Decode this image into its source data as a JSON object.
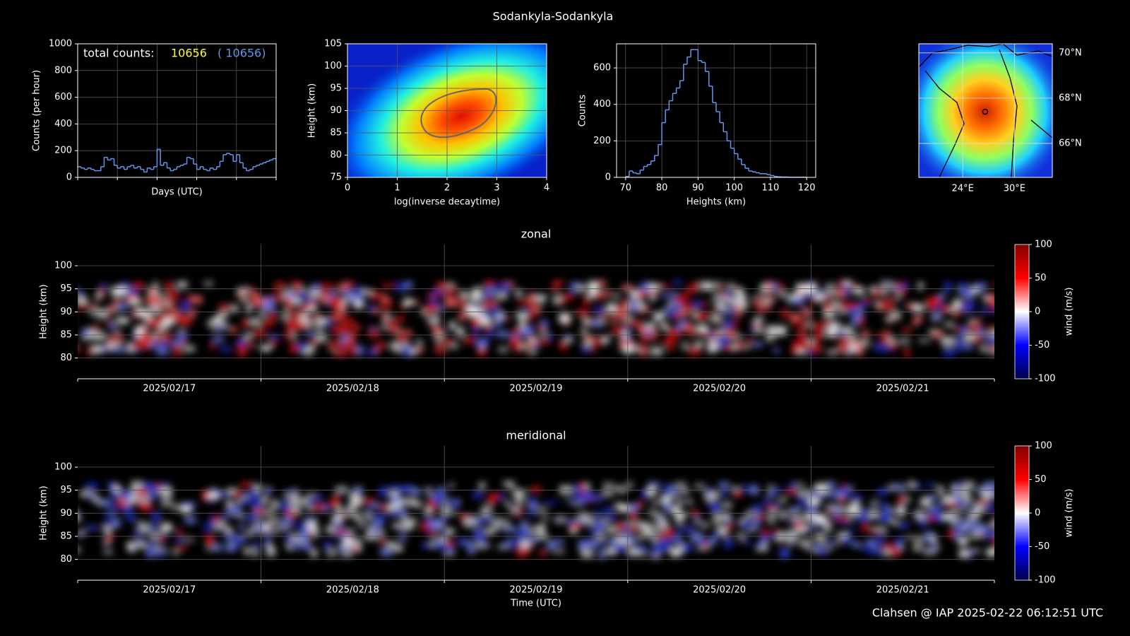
{
  "title": "Sodankyla-Sodankyla",
  "footer": "Clahsen @ IAP 2025-02-22 06:12:51 UTC",
  "chart_data": [
    {
      "type": "step",
      "xlabel": "Days (UTC)",
      "ylabel": "Counts (per hour)",
      "color": "#6495ed",
      "xlim": [
        "2025/02/17",
        "2025/02/22"
      ],
      "ylim": [
        0,
        1000
      ],
      "yticks": [
        0,
        200,
        400,
        600,
        800,
        1000
      ],
      "grid": true,
      "annotations": [
        {
          "text": "total counts:",
          "color": "#ffffff"
        },
        {
          "text": "10656",
          "color": "#ffff33"
        },
        {
          "text": "( 10656)",
          "color": "#6495ed"
        }
      ],
      "values": [
        80,
        70,
        60,
        70,
        60,
        50,
        50,
        80,
        150,
        130,
        140,
        90,
        70,
        80,
        60,
        80,
        90,
        70,
        80,
        60,
        40,
        70,
        60,
        80,
        210,
        90,
        110,
        70,
        50,
        60,
        80,
        90,
        100,
        150,
        140,
        100,
        60,
        80,
        60,
        50,
        70,
        60,
        80,
        120,
        170,
        180,
        170,
        120,
        170,
        110,
        70,
        50,
        60,
        80,
        90,
        100,
        110,
        120,
        130,
        140
      ]
    },
    {
      "type": "density",
      "xlabel": "log(inverse decaytime)",
      "ylabel": "Height (km)",
      "xlim": [
        0,
        4
      ],
      "xticks": [
        0,
        1,
        2,
        3,
        4
      ],
      "ylim": [
        75,
        105
      ],
      "yticks": [
        75,
        80,
        85,
        90,
        95,
        100,
        105
      ],
      "grid": true
    },
    {
      "type": "histogram",
      "xlabel": "Heights (km)",
      "ylabel": "Counts",
      "color": "#6495ed",
      "xlim": [
        67.5,
        122.5
      ],
      "xticks": [
        70,
        80,
        90,
        100,
        110,
        120
      ],
      "ylim": [
        0,
        732
      ],
      "yticks": [
        0,
        200,
        400,
        600
      ],
      "grid": true,
      "bins": [
        70,
        71,
        72,
        73,
        74,
        75,
        76,
        77,
        78,
        79,
        80,
        81,
        82,
        83,
        84,
        85,
        86,
        87,
        88,
        89,
        90,
        91,
        92,
        93,
        94,
        95,
        96,
        97,
        98,
        99,
        100,
        101,
        102,
        103,
        104,
        105,
        106,
        107,
        108,
        109,
        110,
        111,
        112,
        113,
        114,
        115,
        116,
        117,
        118,
        119,
        120
      ],
      "values": [
        5,
        35,
        25,
        20,
        40,
        60,
        70,
        90,
        120,
        180,
        300,
        370,
        420,
        460,
        490,
        530,
        620,
        660,
        700,
        700,
        640,
        630,
        580,
        500,
        410,
        360,
        300,
        250,
        200,
        160,
        130,
        100,
        70,
        50,
        35,
        30,
        25,
        20,
        20,
        15,
        10,
        5,
        3,
        2,
        2,
        1,
        1,
        1,
        1,
        1
      ]
    },
    {
      "type": "map",
      "xlim": [
        18.9,
        34.4
      ],
      "ylim": [
        64.5,
        70.4
      ],
      "xticks": [
        {
          "value": 24,
          "label": "24°E"
        },
        {
          "value": 30,
          "label": "30°E"
        }
      ],
      "yticks": [
        {
          "value": 66,
          "label": "66°N"
        },
        {
          "value": 68,
          "label": "68°N"
        },
        {
          "value": 70,
          "label": "70°N"
        }
      ],
      "station": {
        "lon": 26.6,
        "lat": 67.4
      }
    },
    {
      "type": "heatmap",
      "title": "zonal",
      "ylabel": "Height (km)",
      "xlim": [
        "2025/02/17",
        "2025/02/22"
      ],
      "xticks": [
        "2025/02/17",
        "2025/02/18",
        "2025/02/19",
        "2025/02/20",
        "2025/02/21"
      ],
      "ylim": [
        75.5,
        104.6
      ],
      "yticks": [
        80,
        85,
        90,
        95,
        100
      ],
      "grid": true,
      "colorbar": {
        "label": "wind (m/s)",
        "lim": [
          -100,
          100
        ],
        "ticks": [
          100,
          50,
          0,
          -50,
          -100
        ]
      }
    },
    {
      "type": "heatmap",
      "title": "meridional",
      "xlabel": "Time (UTC)",
      "ylabel": "Height (km)",
      "xlim": [
        "2025/02/17",
        "2025/02/22"
      ],
      "xticks": [
        "2025/02/17",
        "2025/02/18",
        "2025/02/19",
        "2025/02/20",
        "2025/02/21"
      ],
      "ylim": [
        75.5,
        104.6
      ],
      "yticks": [
        80,
        85,
        90,
        95,
        100
      ],
      "grid": true,
      "colorbar": {
        "label": "wind (m/s)",
        "lim": [
          -100,
          100
        ],
        "ticks": [
          100,
          50,
          0,
          -50,
          -100
        ]
      }
    }
  ]
}
